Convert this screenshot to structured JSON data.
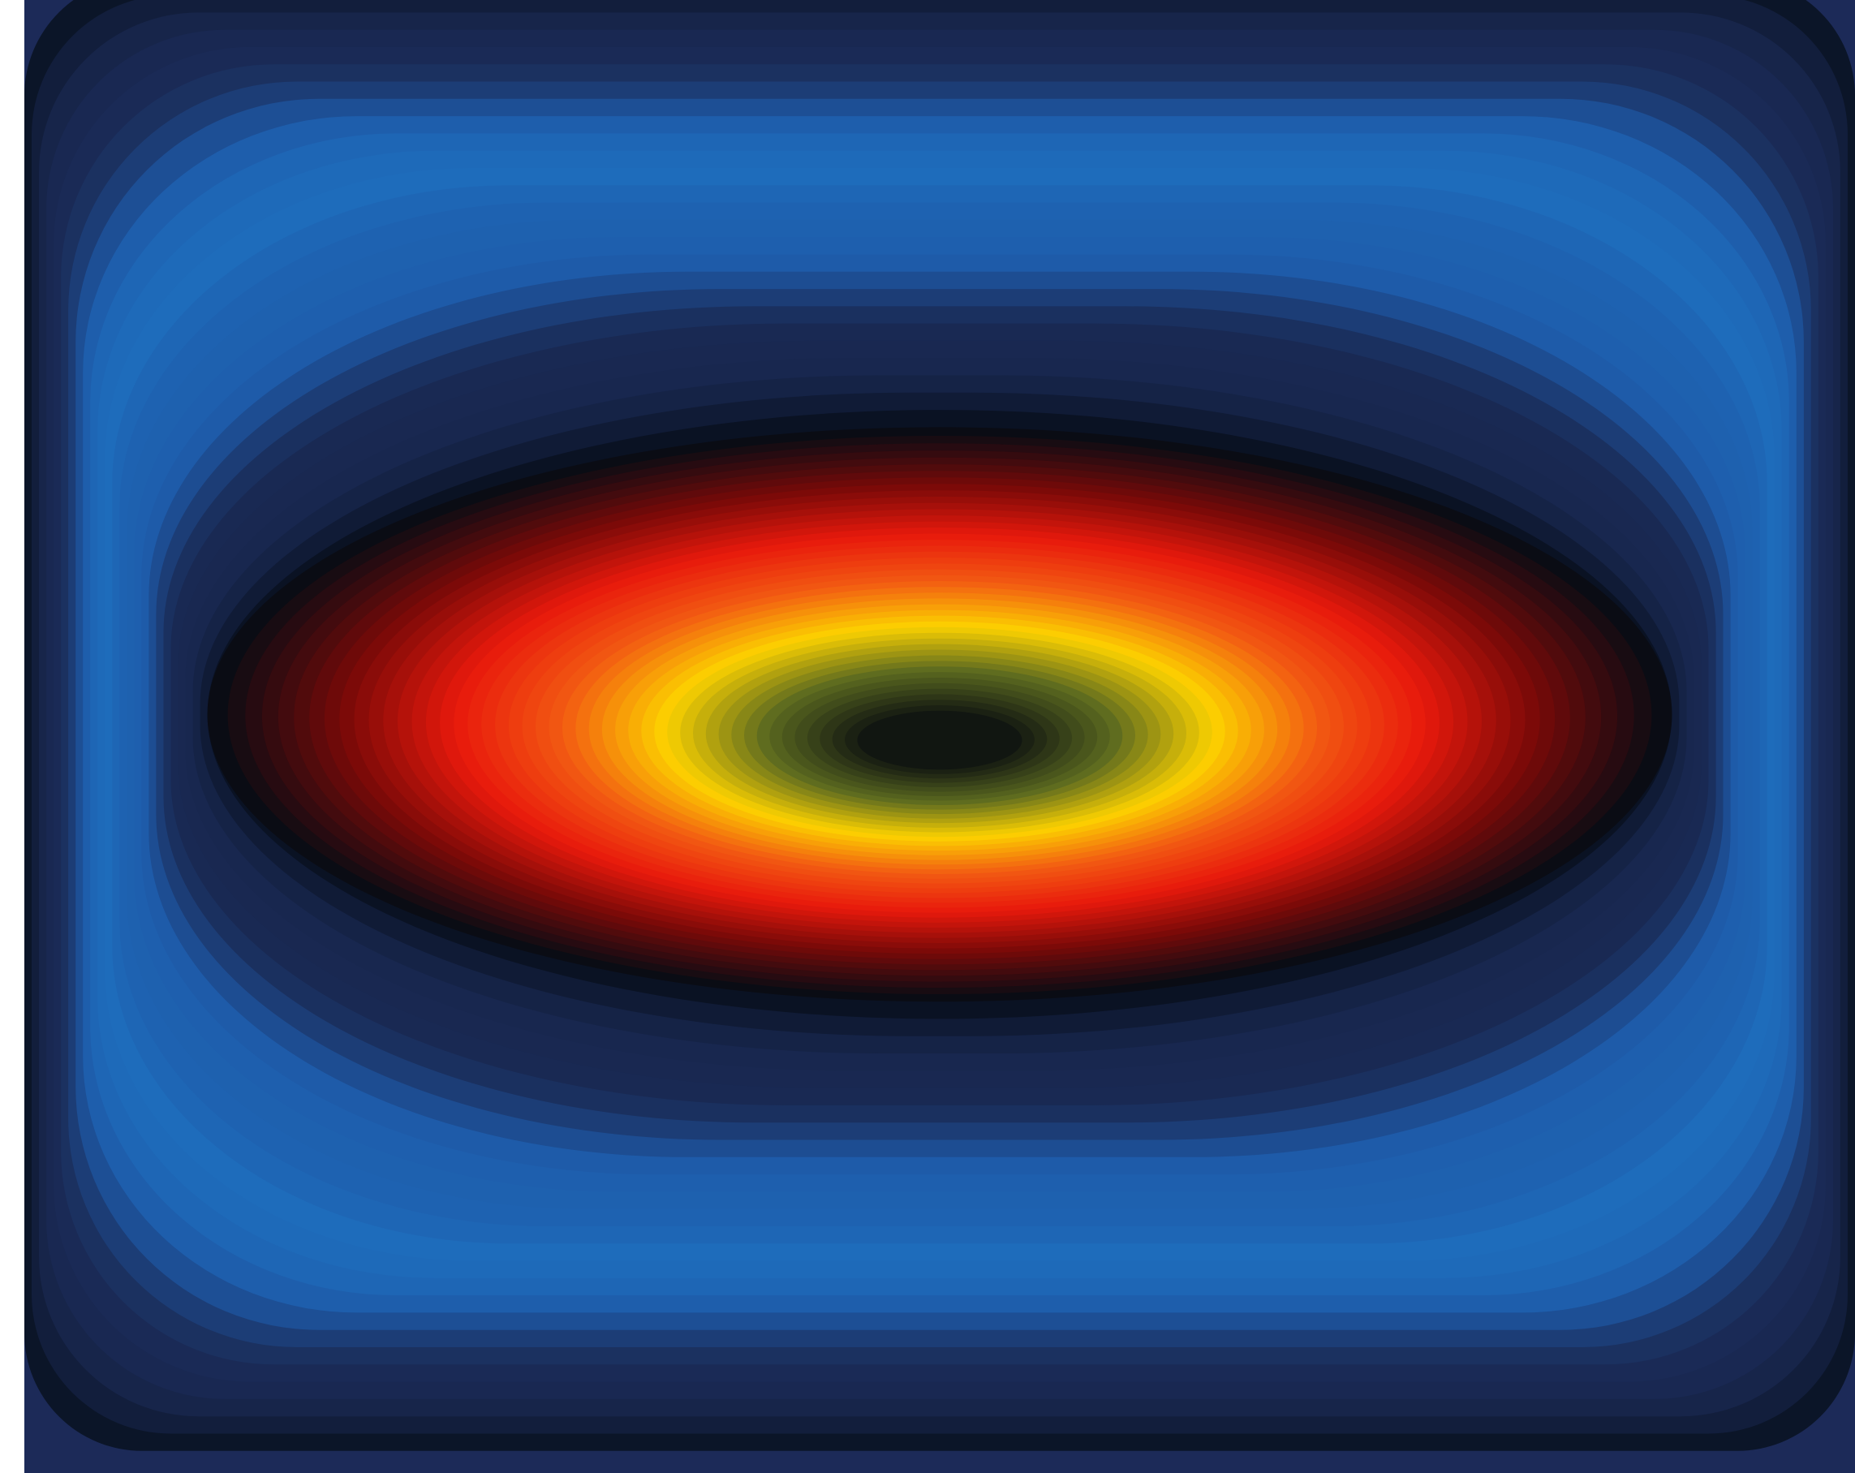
{
  "chart_data": {
    "type": "heatmap",
    "style": "filled-contour",
    "title": "",
    "xlabel": "",
    "ylabel": "",
    "axes_visible": false,
    "grid": false,
    "legend": "none",
    "colorbar": false,
    "contour_levels": 48,
    "field": {
      "x_range": [
        -1,
        1
      ],
      "y_range": [
        -1,
        1
      ],
      "center": [
        0,
        0.03
      ],
      "outer_boundary": "rounded-square",
      "inner_feature": "ellipse",
      "ellipse_semi_axes": [
        0.8,
        0.39
      ],
      "core_semi_axes": [
        0.09,
        0.04
      ]
    },
    "colormap": [
      "#0a0c14",
      "#7a0a08",
      "#e8190c",
      "#f25a12",
      "#fcd200",
      "#5c6a20",
      "#111611"
    ],
    "outer_colormap": [
      "#08101e",
      "#1a2a55",
      "#1e5aa8",
      "#1e78c8",
      "#223a78",
      "#1c2a58"
    ]
  }
}
